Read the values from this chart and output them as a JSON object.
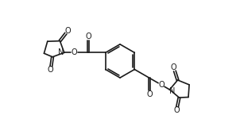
{
  "bg_color": "#ffffff",
  "line_color": "#1a1a1a",
  "line_width": 1.2,
  "text_color": "#1a1a1a",
  "font_size": 7.0,
  "figsize": [
    3.02,
    1.69
  ],
  "dpi": 100,
  "xlim": [
    0,
    10.0
  ],
  "ylim": [
    0,
    5.6
  ]
}
